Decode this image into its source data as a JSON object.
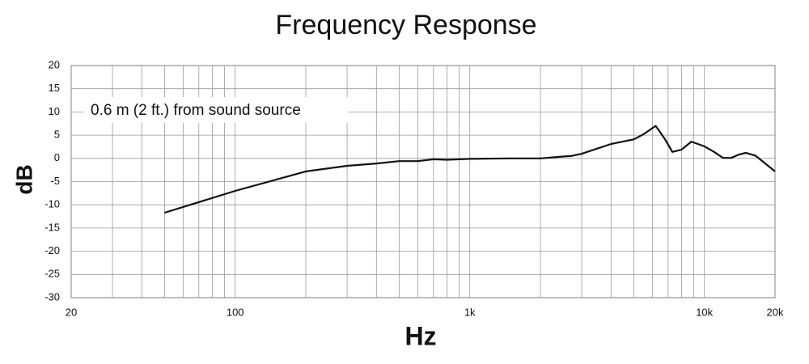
{
  "chart_data": {
    "type": "line",
    "title": "Frequency Response",
    "annotation": "0.6 m (2 ft.) from sound source",
    "x_label": "Hz",
    "y_label": "dB",
    "xscale": "log",
    "grid": true,
    "xlim": [
      20,
      20000
    ],
    "ylim": [
      -30,
      20
    ],
    "xticks": [
      20,
      100,
      {
        "value": 1000,
        "label": "1k"
      },
      {
        "value": 10000,
        "label": "10k"
      },
      {
        "value": 20000,
        "label": "20k"
      }
    ],
    "xgrid": [
      30,
      40,
      50,
      60,
      70,
      80,
      90,
      200,
      300,
      400,
      500,
      600,
      700,
      800,
      900,
      2000,
      3000,
      4000,
      5000,
      6000,
      7000,
      8000,
      9000
    ],
    "yticks": [
      20,
      15,
      10,
      5,
      0,
      -5,
      -10,
      -15,
      -20,
      -25,
      -30
    ],
    "series": [
      {
        "color": "#111111",
        "x": [
          50,
          100,
          200,
          300,
          400,
          500,
          600,
          700,
          800,
          1000,
          1500,
          2000,
          2500,
          2700,
          3000,
          4000,
          5000,
          5500,
          6200,
          6800,
          7300,
          8000,
          8800,
          10000,
          11000,
          12000,
          13000,
          14000,
          15000,
          16500,
          20000
        ],
        "values": [
          -11.7,
          -7.0,
          -2.8,
          -1.6,
          -1.1,
          -0.6,
          -0.6,
          -0.2,
          -0.3,
          -0.1,
          0.0,
          0.0,
          0.4,
          0.5,
          1.0,
          3.1,
          4.1,
          5.2,
          7.0,
          4.1,
          1.4,
          1.9,
          3.6,
          2.6,
          1.4,
          0.1,
          0.1,
          0.8,
          1.2,
          0.6,
          -2.8
        ]
      }
    ]
  }
}
